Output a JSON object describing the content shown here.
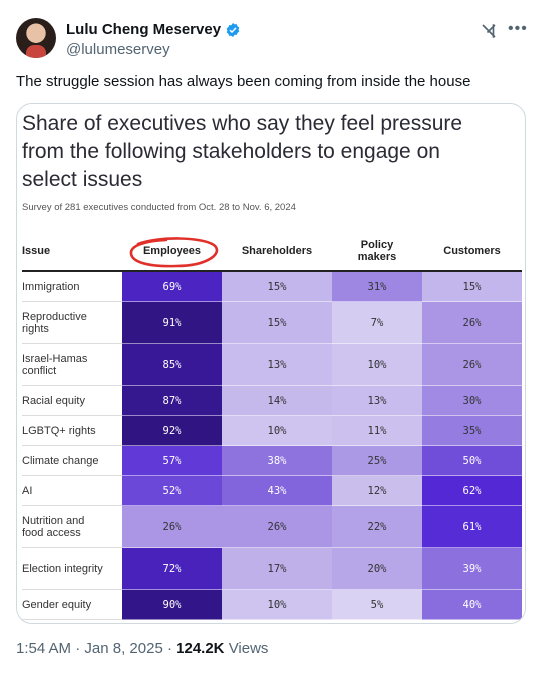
{
  "author": {
    "name": "Lulu Cheng Meservey",
    "handle": "@lulumeservey"
  },
  "tweet": {
    "text": "The struggle session has always been coming from inside the house",
    "time": "1:54 AM",
    "date": "Jan 8, 2025",
    "views_count": "124.2K",
    "views_label": "Views"
  },
  "icons": {
    "verified": "verified-badge-icon",
    "grok": "grok-icon",
    "more": "more-icon"
  },
  "chart_data": {
    "type": "table",
    "title": "Share of executives who say they feel pressure from the following stakeholders to engage on select issues",
    "subtitle": "Survey of 281 executives conducted from Oct. 28 to Nov. 6, 2024",
    "columns": [
      "Issue",
      "Employees",
      "Shareholders",
      "Policy makers",
      "Customers"
    ],
    "rows": [
      {
        "issue": "Immigration",
        "values": [
          "69%",
          "15%",
          "31%",
          "15%"
        ]
      },
      {
        "issue": "Reproductive rights",
        "values": [
          "91%",
          "15%",
          "7%",
          "26%"
        ]
      },
      {
        "issue": "Israel-Hamas conflict",
        "values": [
          "85%",
          "13%",
          "10%",
          "26%"
        ]
      },
      {
        "issue": "Racial equity",
        "values": [
          "87%",
          "14%",
          "13%",
          "30%"
        ]
      },
      {
        "issue": "LGBTQ+ rights",
        "values": [
          "92%",
          "10%",
          "11%",
          "35%"
        ]
      },
      {
        "issue": "Climate change",
        "values": [
          "57%",
          "38%",
          "25%",
          "50%"
        ]
      },
      {
        "issue": "AI",
        "values": [
          "52%",
          "43%",
          "12%",
          "62%"
        ]
      },
      {
        "issue": "Nutrition and food access",
        "values": [
          "26%",
          "26%",
          "22%",
          "61%"
        ]
      },
      {
        "issue": "Election integrity",
        "values": [
          "72%",
          "17%",
          "20%",
          "39%"
        ]
      },
      {
        "issue": "Gender equity",
        "values": [
          "90%",
          "10%",
          "5%",
          "40%"
        ]
      }
    ],
    "highlighted_column": "Employees",
    "annotation_color": "#e0302a"
  }
}
